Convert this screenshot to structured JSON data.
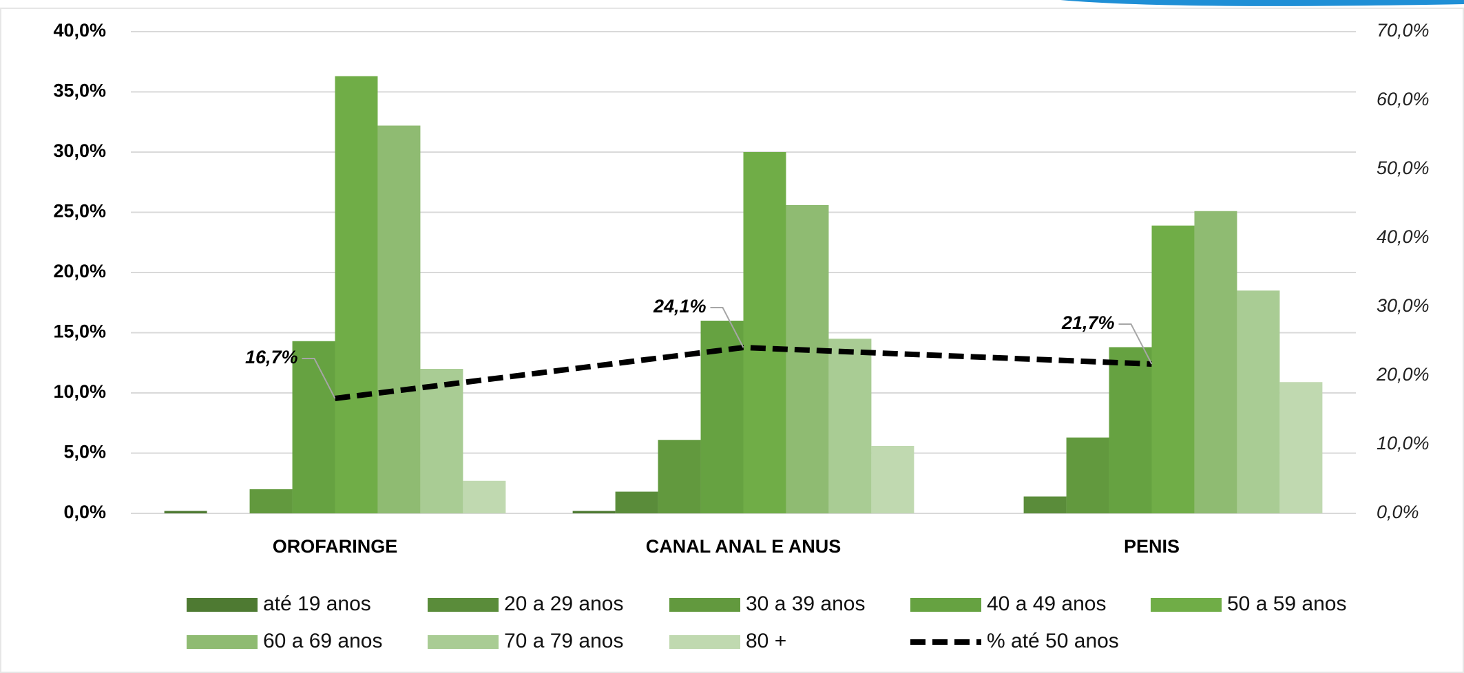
{
  "chart_data": {
    "type": "bar",
    "categories": [
      "OROFARINGE",
      "CANAL ANAL E ANUS",
      "PENIS"
    ],
    "series": [
      {
        "name": "até 19 anos",
        "color": "#4e7a32",
        "values": [
          0.2,
          0.2,
          0
        ]
      },
      {
        "name": "20 a 29 anos",
        "color": "#5a8c3a",
        "values": [
          0,
          1.8,
          1.4
        ]
      },
      {
        "name": "30 a 39 anos",
        "color": "#62993e",
        "values": [
          2.0,
          6.1,
          6.3
        ]
      },
      {
        "name": "40 a 49 anos",
        "color": "#66a241",
        "values": [
          14.3,
          16.0,
          13.8
        ]
      },
      {
        "name": "50 a 59 anos",
        "color": "#70ad47",
        "values": [
          36.3,
          30.0,
          23.9
        ]
      },
      {
        "name": "60 a 69 anos",
        "color": "#8fbb72",
        "values": [
          32.2,
          25.6,
          25.1
        ]
      },
      {
        "name": "70 a 79 anos",
        "color": "#a9cc94",
        "values": [
          12.0,
          14.5,
          18.5
        ]
      },
      {
        "name": "80 +",
        "color": "#c0d9b0",
        "values": [
          2.7,
          5.6,
          10.9
        ]
      },
      {
        "name": "% até 50 anos",
        "type": "line",
        "axis": "y2",
        "color": "#000000",
        "values": [
          16.7,
          24.1,
          21.7
        ],
        "value_labels": [
          "16,7%",
          "24,1%",
          "21,7%"
        ]
      }
    ],
    "ylim": [
      0,
      40
    ],
    "yticks": [
      {
        "value": 0,
        "label": "0,0%"
      },
      {
        "value": 5,
        "label": "5,0%"
      },
      {
        "value": 10,
        "label": "10,0%"
      },
      {
        "value": 15,
        "label": "15,0%"
      },
      {
        "value": 20,
        "label": "20,0%"
      },
      {
        "value": 25,
        "label": "25,0%"
      },
      {
        "value": 30,
        "label": "30,0%"
      },
      {
        "value": 35,
        "label": "35,0%"
      },
      {
        "value": 40,
        "label": "40,0%"
      }
    ],
    "y2lim": [
      0,
      70
    ],
    "y2ticks": [
      {
        "value": 0,
        "label": "0,0%"
      },
      {
        "value": 10,
        "label": "10,0%"
      },
      {
        "value": 20,
        "label": "20,0%"
      },
      {
        "value": 30,
        "label": "30,0%"
      },
      {
        "value": 40,
        "label": "40,0%"
      },
      {
        "value": 50,
        "label": "50,0%"
      },
      {
        "value": 60,
        "label": "60,0%"
      },
      {
        "value": 70,
        "label": "70,0%"
      }
    ],
    "grid": true,
    "legend": "bottom"
  }
}
